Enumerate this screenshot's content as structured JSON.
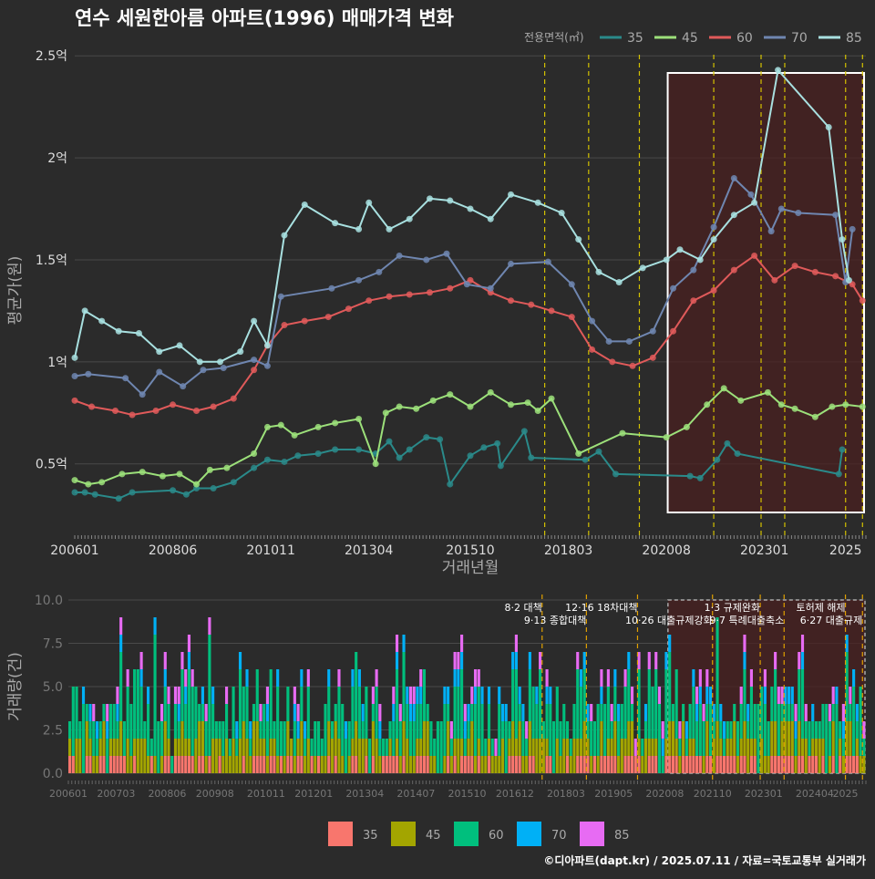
{
  "title": "연수 세원한아름 아파트(1996) 매매가격 변화",
  "footer": "©디아파트(dapt.kr) / 2025.07.11 / 자료=국토교통부 실거래가",
  "colors": {
    "bg": "#2b2b2b",
    "grid": "#4a4a4a",
    "text": "#dddddd",
    "muted": "#aaaaaa",
    "highlight_fill": "#4a2020",
    "event_line": "#d4c200"
  },
  "chart_data": [
    {
      "type": "line",
      "title": "연수 세원한아름 아파트(1996) 매매가격 변화",
      "xlabel": "거래년월",
      "ylabel": "평균가(원)",
      "legend_title": "전용면적(㎡)",
      "legend_position": "top-right",
      "ylim": [
        0.15,
        2.55
      ],
      "y_ticks": [
        0.5,
        1,
        1.5,
        2,
        2.5
      ],
      "y_tick_labels": [
        "0.5억",
        "1억",
        "1.5억",
        "2억",
        "2.5억"
      ],
      "x_ticks": [
        "200601",
        "200806",
        "201011",
        "201304",
        "201510",
        "201803",
        "202008",
        "202301",
        "2025"
      ],
      "x_range": [
        "2006-01",
        "2025-07"
      ],
      "grid": true,
      "highlight": {
        "from": "2020-10",
        "to": "2025-07"
      },
      "event_lines": [
        "2017-08",
        "2018-09",
        "2019-12",
        "2021-10",
        "2022-12",
        "2023-07",
        "2025-01",
        "2025-06"
      ],
      "series": [
        {
          "name": "35",
          "color": "#2a8a8a",
          "points": [
            [
              "2006-01",
              0.36
            ],
            [
              "2006-04",
              0.36
            ],
            [
              "2006-07",
              0.35
            ],
            [
              "2007-02",
              0.33
            ],
            [
              "2007-06",
              0.36
            ],
            [
              "2008-06",
              0.37
            ],
            [
              "2008-10",
              0.35
            ],
            [
              "2009-01",
              0.38
            ],
            [
              "2009-06",
              0.38
            ],
            [
              "2009-12",
              0.41
            ],
            [
              "2010-06",
              0.48
            ],
            [
              "2010-10",
              0.52
            ],
            [
              "2011-03",
              0.51
            ],
            [
              "2011-07",
              0.54
            ],
            [
              "2012-01",
              0.55
            ],
            [
              "2012-06",
              0.57
            ],
            [
              "2013-01",
              0.57
            ],
            [
              "2013-06",
              0.55
            ],
            [
              "2013-10",
              0.61
            ],
            [
              "2014-01",
              0.53
            ],
            [
              "2014-04",
              0.57
            ],
            [
              "2014-09",
              0.63
            ],
            [
              "2015-01",
              0.62
            ],
            [
              "2015-04",
              0.4
            ],
            [
              "2015-10",
              0.54
            ],
            [
              "2016-02",
              0.58
            ],
            [
              "2016-06",
              0.6
            ],
            [
              "2016-07",
              0.49
            ],
            [
              "2017-02",
              0.66
            ],
            [
              "2017-04",
              0.53
            ],
            [
              "2018-08",
              0.52
            ],
            [
              "2018-12",
              0.56
            ],
            [
              "2019-05",
              0.45
            ],
            [
              "2021-03",
              0.44
            ],
            [
              "2021-06",
              0.43
            ],
            [
              "2021-11",
              0.52
            ],
            [
              "2022-02",
              0.6
            ],
            [
              "2022-05",
              0.55
            ],
            [
              "2024-11",
              0.45
            ],
            [
              "2024-12",
              0.57
            ]
          ]
        },
        {
          "name": "45",
          "color": "#9ce07a",
          "points": [
            [
              "2006-01",
              0.42
            ],
            [
              "2006-05",
              0.4
            ],
            [
              "2006-09",
              0.41
            ],
            [
              "2007-03",
              0.45
            ],
            [
              "2007-09",
              0.46
            ],
            [
              "2008-03",
              0.44
            ],
            [
              "2008-08",
              0.45
            ],
            [
              "2009-01",
              0.4
            ],
            [
              "2009-05",
              0.47
            ],
            [
              "2009-10",
              0.48
            ],
            [
              "2010-06",
              0.55
            ],
            [
              "2010-10",
              0.68
            ],
            [
              "2011-02",
              0.69
            ],
            [
              "2011-06",
              0.64
            ],
            [
              "2012-01",
              0.68
            ],
            [
              "2012-06",
              0.7
            ],
            [
              "2013-01",
              0.72
            ],
            [
              "2013-06",
              0.5
            ],
            [
              "2013-09",
              0.75
            ],
            [
              "2014-01",
              0.78
            ],
            [
              "2014-06",
              0.77
            ],
            [
              "2014-11",
              0.81
            ],
            [
              "2015-04",
              0.84
            ],
            [
              "2015-10",
              0.78
            ],
            [
              "2016-04",
              0.85
            ],
            [
              "2016-10",
              0.79
            ],
            [
              "2017-03",
              0.8
            ],
            [
              "2017-06",
              0.76
            ],
            [
              "2017-10",
              0.82
            ],
            [
              "2018-06",
              0.55
            ],
            [
              "2019-07",
              0.65
            ],
            [
              "2020-08",
              0.63
            ],
            [
              "2021-02",
              0.68
            ],
            [
              "2021-08",
              0.79
            ],
            [
              "2022-01",
              0.87
            ],
            [
              "2022-06",
              0.81
            ],
            [
              "2023-02",
              0.85
            ],
            [
              "2023-06",
              0.79
            ],
            [
              "2023-10",
              0.77
            ],
            [
              "2024-04",
              0.73
            ],
            [
              "2024-09",
              0.78
            ],
            [
              "2025-01",
              0.79
            ],
            [
              "2025-06",
              0.78
            ]
          ]
        },
        {
          "name": "60",
          "color": "#e05a5a",
          "points": [
            [
              "2006-01",
              0.81
            ],
            [
              "2006-06",
              0.78
            ],
            [
              "2007-01",
              0.76
            ],
            [
              "2007-06",
              0.74
            ],
            [
              "2008-01",
              0.76
            ],
            [
              "2008-06",
              0.79
            ],
            [
              "2009-01",
              0.76
            ],
            [
              "2009-06",
              0.78
            ],
            [
              "2009-12",
              0.82
            ],
            [
              "2010-06",
              0.96
            ],
            [
              "2010-10",
              1.08
            ],
            [
              "2011-03",
              1.18
            ],
            [
              "2011-09",
              1.2
            ],
            [
              "2012-04",
              1.22
            ],
            [
              "2012-10",
              1.26
            ],
            [
              "2013-04",
              1.3
            ],
            [
              "2013-10",
              1.32
            ],
            [
              "2014-04",
              1.33
            ],
            [
              "2014-10",
              1.34
            ],
            [
              "2015-04",
              1.36
            ],
            [
              "2015-10",
              1.4
            ],
            [
              "2016-04",
              1.34
            ],
            [
              "2016-10",
              1.3
            ],
            [
              "2017-04",
              1.28
            ],
            [
              "2017-10",
              1.25
            ],
            [
              "2018-04",
              1.22
            ],
            [
              "2018-10",
              1.06
            ],
            [
              "2019-04",
              1.0
            ],
            [
              "2019-10",
              0.98
            ],
            [
              "2020-04",
              1.02
            ],
            [
              "2020-10",
              1.15
            ],
            [
              "2021-04",
              1.3
            ],
            [
              "2021-10",
              1.35
            ],
            [
              "2022-04",
              1.45
            ],
            [
              "2022-10",
              1.52
            ],
            [
              "2023-04",
              1.4
            ],
            [
              "2023-10",
              1.47
            ],
            [
              "2024-04",
              1.44
            ],
            [
              "2024-10",
              1.42
            ],
            [
              "2025-03",
              1.38
            ],
            [
              "2025-06",
              1.3
            ]
          ]
        },
        {
          "name": "70",
          "color": "#6f86b0",
          "points": [
            [
              "2006-01",
              0.93
            ],
            [
              "2006-05",
              0.94
            ],
            [
              "2007-04",
              0.92
            ],
            [
              "2007-09",
              0.84
            ],
            [
              "2008-02",
              0.95
            ],
            [
              "2008-09",
              0.88
            ],
            [
              "2009-03",
              0.96
            ],
            [
              "2009-09",
              0.97
            ],
            [
              "2010-06",
              1.01
            ],
            [
              "2010-10",
              0.98
            ],
            [
              "2011-02",
              1.32
            ],
            [
              "2012-05",
              1.36
            ],
            [
              "2013-01",
              1.4
            ],
            [
              "2013-07",
              1.44
            ],
            [
              "2014-01",
              1.52
            ],
            [
              "2014-09",
              1.5
            ],
            [
              "2015-03",
              1.53
            ],
            [
              "2015-09",
              1.38
            ],
            [
              "2016-04",
              1.36
            ],
            [
              "2016-10",
              1.48
            ],
            [
              "2017-09",
              1.49
            ],
            [
              "2018-04",
              1.38
            ],
            [
              "2018-10",
              1.2
            ],
            [
              "2019-03",
              1.1
            ],
            [
              "2019-09",
              1.1
            ],
            [
              "2020-04",
              1.15
            ],
            [
              "2020-10",
              1.36
            ],
            [
              "2021-04",
              1.45
            ],
            [
              "2021-10",
              1.66
            ],
            [
              "2022-04",
              1.9
            ],
            [
              "2022-09",
              1.82
            ],
            [
              "2023-03",
              1.64
            ],
            [
              "2023-06",
              1.75
            ],
            [
              "2023-11",
              1.73
            ],
            [
              "2024-10",
              1.72
            ],
            [
              "2025-01",
              1.39
            ],
            [
              "2025-03",
              1.65
            ]
          ]
        },
        {
          "name": "85",
          "color": "#a8e0e0",
          "points": [
            [
              "2006-01",
              1.02
            ],
            [
              "2006-04",
              1.25
            ],
            [
              "2006-09",
              1.2
            ],
            [
              "2007-02",
              1.15
            ],
            [
              "2007-08",
              1.14
            ],
            [
              "2008-02",
              1.05
            ],
            [
              "2008-08",
              1.08
            ],
            [
              "2009-02",
              1.0
            ],
            [
              "2009-08",
              1.0
            ],
            [
              "2010-02",
              1.05
            ],
            [
              "2010-06",
              1.2
            ],
            [
              "2010-10",
              1.08
            ],
            [
              "2011-03",
              1.62
            ],
            [
              "2011-09",
              1.77
            ],
            [
              "2012-06",
              1.68
            ],
            [
              "2013-01",
              1.65
            ],
            [
              "2013-04",
              1.78
            ],
            [
              "2013-10",
              1.65
            ],
            [
              "2014-04",
              1.7
            ],
            [
              "2014-10",
              1.8
            ],
            [
              "2015-04",
              1.79
            ],
            [
              "2015-10",
              1.75
            ],
            [
              "2016-04",
              1.7
            ],
            [
              "2016-10",
              1.82
            ],
            [
              "2017-06",
              1.78
            ],
            [
              "2018-01",
              1.73
            ],
            [
              "2018-06",
              1.6
            ],
            [
              "2018-12",
              1.44
            ],
            [
              "2019-06",
              1.39
            ],
            [
              "2020-01",
              1.46
            ],
            [
              "2020-08",
              1.5
            ],
            [
              "2020-12",
              1.55
            ],
            [
              "2021-06",
              1.5
            ],
            [
              "2021-10",
              1.6
            ],
            [
              "2022-04",
              1.72
            ],
            [
              "2022-10",
              1.78
            ],
            [
              "2023-05",
              2.43
            ],
            [
              "2024-08",
              2.15
            ],
            [
              "2024-12",
              1.6
            ],
            [
              "2025-02",
              1.4
            ]
          ]
        }
      ]
    },
    {
      "type": "bar",
      "ylabel": "거래량(건)",
      "ylim": [
        0,
        10
      ],
      "y_ticks": [
        0,
        2.5,
        5,
        7.5,
        10
      ],
      "y_tick_labels": [
        "0.0",
        "2.5",
        "5.0",
        "7.5",
        "10.0"
      ],
      "x_ticks": [
        "200601",
        "200703",
        "200806",
        "200908",
        "201011",
        "201201",
        "201304",
        "201407",
        "201510",
        "201612",
        "201803",
        "201905",
        "202008",
        "202110",
        "202301",
        "202404",
        "2025"
      ],
      "x_range": [
        "2006-01",
        "2025-07"
      ],
      "legend_position": "bottom",
      "highlight": {
        "from": "2020-10",
        "to": "2025-07"
      },
      "events": [
        {
          "date": "2017-08",
          "label": "8·2 대책"
        },
        {
          "date": "2018-09",
          "label": "9·13 종합대책"
        },
        {
          "date": "2019-12",
          "label": "12·16 18차대책"
        },
        {
          "date": "2021-10",
          "label": "10·26 대출규제강화"
        },
        {
          "date": "2022-12",
          "label": "1·3 규제완화"
        },
        {
          "date": "2023-07",
          "label": "9·7 특례대출축소"
        },
        {
          "date": "2025-01",
          "label": "토허제 해제"
        },
        {
          "date": "2025-06",
          "label": "6·27 대출규제"
        }
      ],
      "series": [
        {
          "name": "35",
          "color": "#f8766d",
          "approx_monthly_level": 0.4
        },
        {
          "name": "45",
          "color": "#a3a500",
          "approx_monthly_level": 0.9
        },
        {
          "name": "60",
          "color": "#00bf7d",
          "approx_monthly_level": 1.6
        },
        {
          "name": "70",
          "color": "#00b0f6",
          "approx_monthly_level": 0.3
        },
        {
          "name": "85",
          "color": "#e76bf3",
          "approx_monthly_level": 0.3
        }
      ],
      "peak_months": [
        [
          "2008-02",
          9
        ],
        [
          "2009-06",
          9
        ],
        [
          "2021-11",
          10
        ]
      ]
    }
  ]
}
